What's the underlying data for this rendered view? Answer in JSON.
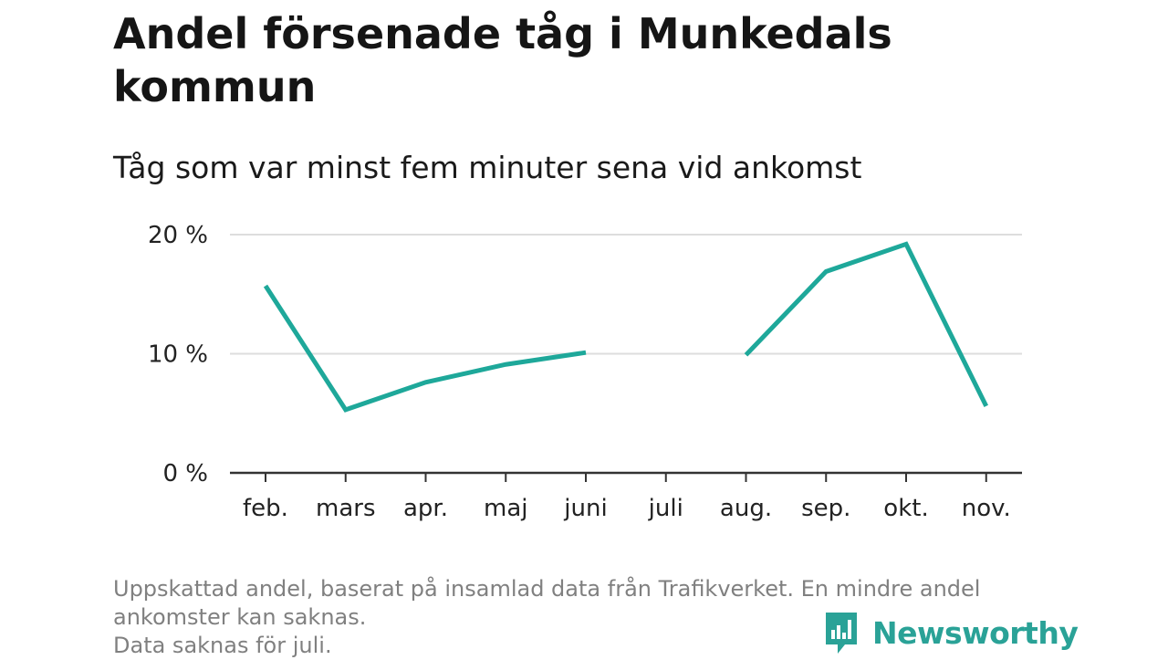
{
  "title": "Andel försenade tåg i Munkedals kommun",
  "subtitle": "Tåg som var minst fem minuter sena vid ankomst",
  "notes": [
    "Uppskattad andel, baserat på insamlad data från Trafikverket. En mindre andel",
    "ankomster kan saknas.",
    "Data saknas för juli."
  ],
  "brand": {
    "name": "Newsworthy",
    "color": "#2aa297"
  },
  "colors": {
    "line": "#1ea89a",
    "grid": "#dddddd",
    "axis": "#333333"
  },
  "chart_data": {
    "type": "line",
    "categories": [
      "feb.",
      "mars",
      "apr.",
      "maj",
      "juni",
      "juli",
      "aug.",
      "sep.",
      "okt.",
      "nov."
    ],
    "series": [
      {
        "values": [
          15.7,
          5.3,
          7.6,
          9.1,
          10.1,
          null,
          9.9,
          16.9,
          19.2,
          5.6
        ]
      }
    ],
    "ylim": [
      0,
      20
    ],
    "yticks": [
      0,
      10,
      20
    ],
    "ytick_labels": [
      "0 %",
      "10 %",
      "20 %"
    ],
    "grid": true,
    "xlabel": "",
    "ylabel": ""
  }
}
